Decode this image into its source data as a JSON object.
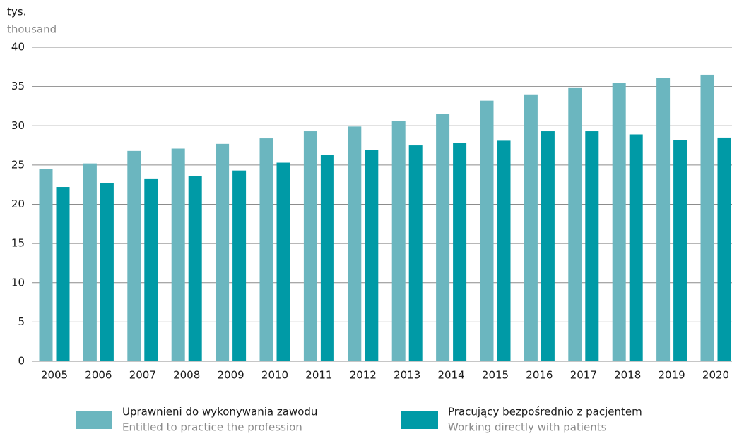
{
  "chart_data": {
    "type": "bar",
    "y_label": "tys.",
    "y_label_en": "thousand",
    "categories": [
      "2005",
      "2006",
      "2007",
      "2008",
      "2009",
      "2010",
      "2011",
      "2012",
      "2013",
      "2014",
      "2015",
      "2016",
      "2017",
      "2018",
      "2019",
      "2020"
    ],
    "series": [
      {
        "name": "Uprawnieni do wykonywania zawodu",
        "name_en": "Entitled to practice the profession",
        "color": "#6bb6bf",
        "values": [
          24.5,
          25.2,
          26.8,
          27.1,
          27.7,
          28.4,
          29.3,
          29.9,
          30.6,
          31.5,
          33.2,
          34.0,
          34.8,
          35.5,
          36.1,
          36.5
        ]
      },
      {
        "name": "Pracujący bezpośrednio z pacjentem",
        "name_en": "Working directly with patients",
        "color": "#009aa6",
        "values": [
          22.2,
          22.7,
          23.2,
          23.6,
          24.3,
          25.3,
          26.3,
          26.9,
          27.5,
          27.8,
          28.1,
          29.3,
          29.3,
          28.9,
          28.2,
          28.5
        ]
      }
    ],
    "ylim": [
      0,
      40
    ],
    "yticks": [
      0,
      5,
      10,
      15,
      20,
      25,
      30,
      35,
      40
    ],
    "grid": true
  }
}
